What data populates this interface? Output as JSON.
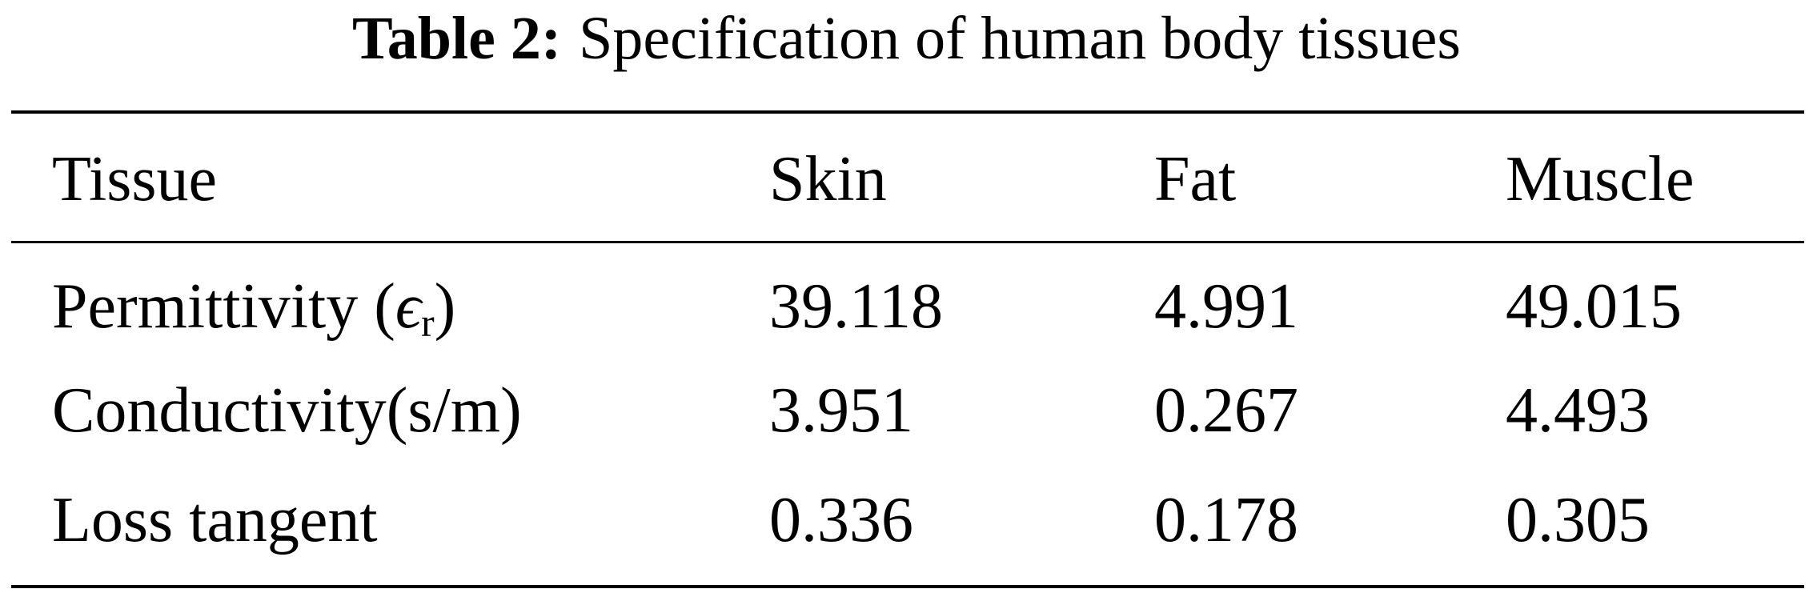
{
  "caption": {
    "label": "Table 2:",
    "text": "Specification of human body tissues"
  },
  "table": {
    "header": [
      "Tissue",
      "Skin",
      "Fat",
      "Muscle"
    ],
    "rows": [
      [
        {
          "text": "Permittivity (",
          "symbol": "ϵ",
          "sub": "r",
          "close": ")"
        },
        39.118,
        4.991,
        49.015
      ],
      [
        "Conductivity(s/m)",
        3.951,
        0.267,
        4.493
      ],
      [
        "Loss tangent",
        0.336,
        0.178,
        0.305
      ]
    ]
  }
}
